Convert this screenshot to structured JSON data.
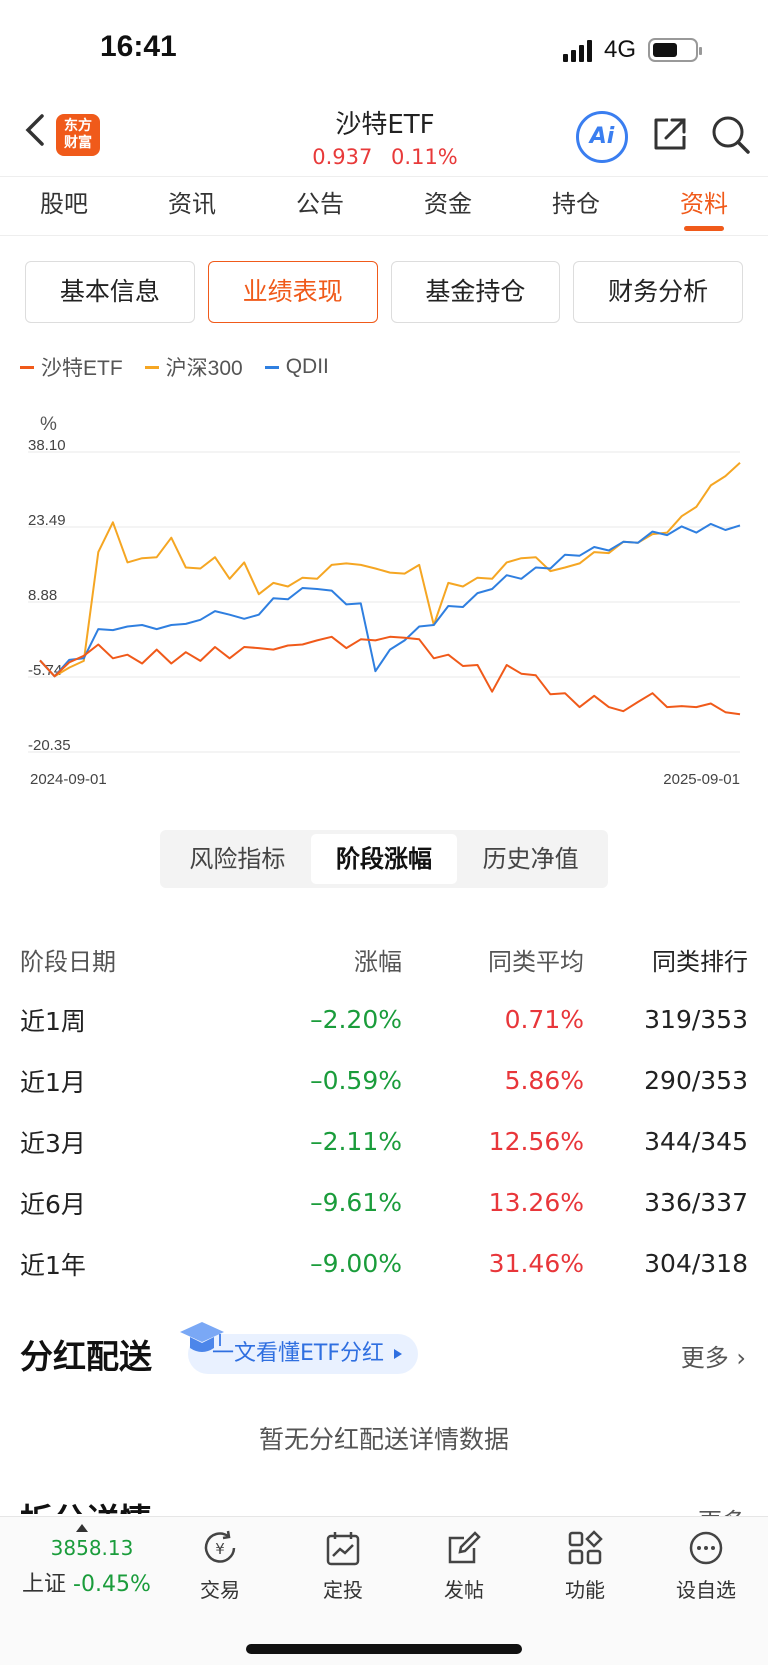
{
  "status": {
    "time": "16:41",
    "network": "4G"
  },
  "header": {
    "logo_line1": "东方",
    "logo_line2": "财富",
    "title": "沙特ETF",
    "price": "0.937",
    "change": "0.11%",
    "ai_label": "Ai"
  },
  "tabs": [
    "股吧",
    "资讯",
    "公告",
    "资金",
    "持仓",
    "资料"
  ],
  "segments": [
    "基本信息",
    "业绩表现",
    "基金持仓",
    "财务分析"
  ],
  "legend": [
    {
      "name": "沙特ETF",
      "color": "#f05a1a"
    },
    {
      "name": "沪深300",
      "color": "#f5a623"
    },
    {
      "name": "QDII",
      "color": "#2f7fe0"
    }
  ],
  "chart_data": {
    "type": "line",
    "ylabel": "%",
    "yticks": [
      "38.10",
      "23.49",
      "8.88",
      "-5.74",
      "-20.35"
    ],
    "ylim": [
      -20.35,
      38.1
    ],
    "x_range": [
      "2024-09-01",
      "2025-09-01"
    ],
    "series": [
      {
        "name": "沙特ETF",
        "color": "#f05a1a",
        "values": [
          -2.5,
          -5.0,
          -3.5,
          -1.0,
          0.0,
          -1.5,
          -2.0,
          -2.5,
          -1.0,
          -2.5,
          -1.5,
          -2.0,
          -0.5,
          -1.5,
          -0.5,
          0.5,
          -1.0,
          1.0,
          0.0,
          2.0,
          1.5,
          0.5,
          1.0,
          2.0,
          1.5,
          2.5,
          1.0,
          -1.5,
          -2.0,
          -3.0,
          -4.0,
          -8.0,
          -4.0,
          -4.5,
          -6.0,
          -8.5,
          -9.5,
          -11.0,
          -10.0,
          -11.0,
          -13.0,
          -10.0,
          -9.5,
          -11.0,
          -12.0,
          -11.0,
          -11.5,
          -12.0,
          -13.0
        ]
      },
      {
        "name": "沪深300",
        "color": "#f5a623",
        "values": [
          -2.5,
          -5.0,
          -4.5,
          -2.0,
          18.0,
          25.0,
          16.0,
          18.0,
          17.0,
          22.0,
          15.0,
          16.0,
          17.0,
          14.0,
          16.0,
          11.0,
          12.0,
          12.5,
          13.0,
          14.0,
          15.5,
          17.0,
          15.5,
          16.0,
          14.0,
          15.0,
          15.5,
          5.0,
          12.0,
          12.5,
          13.0,
          14.0,
          16.0,
          18.0,
          17.0,
          15.5,
          15.0,
          17.0,
          18.0,
          19.0,
          20.0,
          21.0,
          21.5,
          23.0,
          25.0,
          28.0,
          31.0,
          34.0,
          36.0
        ]
      },
      {
        "name": "QDII",
        "color": "#2f7fe0",
        "values": [
          -2.5,
          -5.0,
          -3.0,
          -1.5,
          3.0,
          4.0,
          3.5,
          5.0,
          3.0,
          5.0,
          4.0,
          6.0,
          6.5,
          7.0,
          5.0,
          7.0,
          9.0,
          10.0,
          11.0,
          12.0,
          10.5,
          9.0,
          8.0,
          -4.0,
          -1.0,
          2.0,
          3.5,
          5.0,
          7.5,
          8.5,
          10.0,
          12.0,
          13.5,
          14.0,
          15.0,
          16.0,
          17.5,
          18.5,
          19.0,
          19.5,
          20.0,
          21.0,
          22.0,
          22.5,
          23.0,
          23.0,
          23.5,
          23.5,
          23.8
        ]
      }
    ]
  },
  "sub_segments": [
    "风险指标",
    "阶段涨幅",
    "历史净值"
  ],
  "table": {
    "headers": [
      "阶段日期",
      "涨幅",
      "同类平均",
      "同类排行"
    ],
    "rows": [
      [
        "近1周",
        "–2.20%",
        "0.71%",
        "319/353"
      ],
      [
        "近1月",
        "–0.59%",
        "5.86%",
        "290/353"
      ],
      [
        "近3月",
        "–2.11%",
        "12.56%",
        "344/345"
      ],
      [
        "近6月",
        "–9.61%",
        "13.26%",
        "336/337"
      ],
      [
        "近1年",
        "–9.00%",
        "31.46%",
        "304/318"
      ]
    ]
  },
  "dividend": {
    "title": "分红配送",
    "tag": "一文看懂ETF分红",
    "more": "更多",
    "empty": "暂无分红配送详情数据"
  },
  "split": {
    "title": "拆分详情",
    "more": "更多"
  },
  "bottom_bar": {
    "index_value": "3858.13",
    "index_name": "上证",
    "index_change": "-0.45%",
    "items": [
      "交易",
      "定投",
      "发帖",
      "功能",
      "设自选"
    ]
  }
}
